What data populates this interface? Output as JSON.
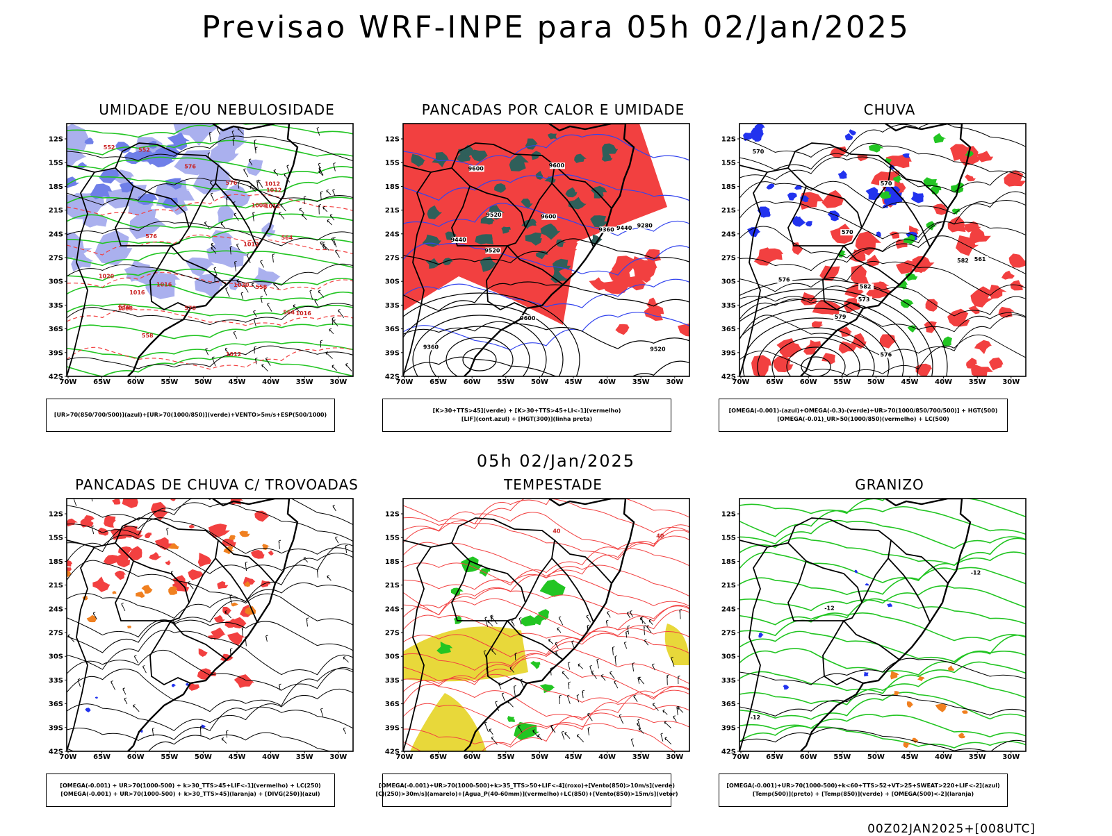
{
  "header": {
    "title": "Previsao WRF-INPE  para 05h 02/Jan/2025"
  },
  "middle": {
    "title": "05h 02/Jan/2025"
  },
  "footer": {
    "stamp": "00Z02JAN2025+[008UTC]"
  },
  "axes": {
    "lat_labels": [
      "12S",
      "15S",
      "18S",
      "21S",
      "24S",
      "27S",
      "30S",
      "33S",
      "36S",
      "39S",
      "42S"
    ],
    "lon_labels": [
      "70W",
      "65W",
      "60W",
      "55W",
      "50W",
      "45W",
      "40W",
      "35W",
      "30W"
    ]
  },
  "colors": {
    "red": "#f24040",
    "green": "#22c522",
    "blue": "#2233ee",
    "lightblue": "#aab0ee",
    "darkteal": "#2f5f5a",
    "yellow": "#e8d83a",
    "orange": "#f08020",
    "purple": "#9922cc"
  },
  "panels": [
    {
      "title": "UMIDADE E/OU NEBULOSIDADE",
      "legend": [
        "[UR>70(850/700/500)](azul)+[UR>70(1000/850)](verde)+VENTO>5m/s+ESP(500/1000)"
      ],
      "labels": [
        "1012",
        "1012",
        "1012",
        "1016",
        "1016",
        "1016",
        "1020",
        "1008",
        "1008",
        "1012",
        "1012",
        "1020",
        "576",
        "576",
        "576",
        "570",
        "570",
        "564",
        "564",
        "558",
        "558",
        "552",
        "552"
      ]
    },
    {
      "title": "PANCADAS POR CALOR E UMIDADE",
      "legend": [
        "[K>30+TTS>45](verde) + [K>30+TTS>45+LI<-1](vermelho)",
        "[LIF](cont.azul) + [HGT(300)](linha preta)"
      ],
      "labels": [
        "9600",
        "9600",
        "9600",
        "9600",
        "9520",
        "9520",
        "9520",
        "9440",
        "9440",
        "9360",
        "9360",
        "9280"
      ]
    },
    {
      "title": "CHUVA",
      "legend": [
        "[OMEGA(-0.001)-(azul)+OMEGA(-0.3)-(verde)+UR>70(1000/850/700/500)] + HGT(500)",
        "[OMEGA(-0.01)_UR>50(1000/850)(vermelho) + LC(500)"
      ],
      "labels": [
        "582",
        "582",
        "579",
        "576",
        "576",
        "573",
        "570",
        "570",
        "570",
        "561"
      ]
    },
    {
      "title": "PANCADAS DE CHUVA C/ TROVOADAS",
      "legend": [
        "[OMEGA(-0.001) + UR>70(1000-500) + k>30_TTS>45+LIF<-1](vermelho) + LC(250)",
        "[OMEGA(-0.001) + UR>70(1000-500) + k>30_TTS>45](laranja) + [DIVG(250)](azul)"
      ],
      "labels": []
    },
    {
      "title": "TEMPESTADE",
      "legend": [
        "[OMEGA(-0.001)+UR>70(1000-500)+k>35_TTS>50+LIF<-4](roxo)+[Vento(850)>10m/s](verde)",
        "[CJ(250)>30m/s](amarelo)+[Agua_P(40-60mm)](vermelho)+LC(850)+[Vento(850)>15m/s](vetor)"
      ],
      "labels": [
        "40",
        "40"
      ]
    },
    {
      "title": "GRANIZO",
      "legend": [
        "[OMEGA(-0.001)+UR>70(1000-500)+k<60+TTS>52+VT>25+SWEAT>220+LIF<-2](azul)",
        "[Temp(500)](preto) + [Temp(850)](verde) + [OMEGA(500)<-2](laranja)"
      ],
      "labels": [
        "-12",
        "-12",
        "-12"
      ]
    }
  ]
}
